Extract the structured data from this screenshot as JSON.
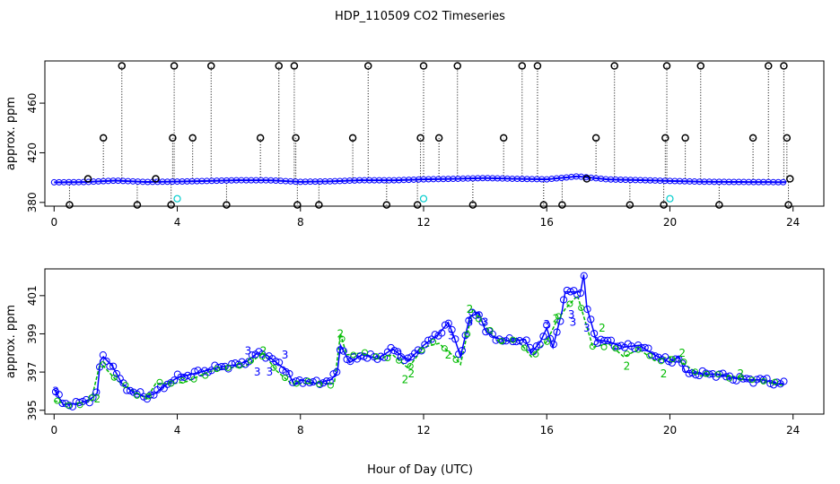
{
  "figure": {
    "title": "HDP_110509  CO2 Timeseries",
    "xlabel": "Hour of Day (UTC)"
  },
  "colors": {
    "primary": "#0000ff",
    "secondary": "#00bb00",
    "outlier": "#000000",
    "flag": "#00cccc"
  },
  "chart_data": [
    {
      "type": "scatter",
      "panel": "top",
      "ylabel": "approx. ppm",
      "xlim": [
        -0.3,
        25
      ],
      "ylim": [
        377,
        494
      ],
      "xticks": [
        0,
        4,
        8,
        12,
        16,
        20,
        24
      ],
      "yticks": [
        380,
        420,
        460
      ],
      "ytick_labels": [
        "380",
        "420",
        "460"
      ],
      "baseline": [
        [
          0,
          396.2
        ],
        [
          1,
          396.4
        ],
        [
          2,
          397.6
        ],
        [
          3,
          396.5
        ],
        [
          4,
          396.8
        ],
        [
          5,
          397.3
        ],
        [
          6,
          397.9
        ],
        [
          7,
          397.8
        ],
        [
          8,
          396.6
        ],
        [
          9,
          397.0
        ],
        [
          10,
          397.9
        ],
        [
          11,
          397.8
        ],
        [
          12,
          398.6
        ],
        [
          13,
          399.0
        ],
        [
          14,
          399.6
        ],
        [
          15,
          399.0
        ],
        [
          16,
          398.6
        ],
        [
          17,
          401.0
        ],
        [
          18,
          398.5
        ],
        [
          19,
          398.0
        ],
        [
          20,
          397.3
        ],
        [
          21,
          396.7
        ],
        [
          22,
          396.5
        ],
        [
          23,
          396.4
        ],
        [
          23.8,
          396.3
        ]
      ],
      "outliers": [
        {
          "x": 0.5,
          "y": 378
        },
        {
          "x": 1.1,
          "y": 399
        },
        {
          "x": 1.6,
          "y": 432
        },
        {
          "x": 2.2,
          "y": 490
        },
        {
          "x": 2.7,
          "y": 378
        },
        {
          "x": 3.3,
          "y": 399
        },
        {
          "x": 3.8,
          "y": 378
        },
        {
          "x": 3.85,
          "y": 432
        },
        {
          "x": 3.9,
          "y": 490
        },
        {
          "x": 4.5,
          "y": 432
        },
        {
          "x": 5.1,
          "y": 490
        },
        {
          "x": 5.6,
          "y": 378
        },
        {
          "x": 6.7,
          "y": 432
        },
        {
          "x": 7.3,
          "y": 490
        },
        {
          "x": 7.8,
          "y": 490
        },
        {
          "x": 7.85,
          "y": 432
        },
        {
          "x": 7.9,
          "y": 378
        },
        {
          "x": 8.6,
          "y": 378
        },
        {
          "x": 9.7,
          "y": 432
        },
        {
          "x": 10.2,
          "y": 490
        },
        {
          "x": 10.8,
          "y": 378
        },
        {
          "x": 11.8,
          "y": 378
        },
        {
          "x": 11.9,
          "y": 432
        },
        {
          "x": 12.0,
          "y": 490
        },
        {
          "x": 12.5,
          "y": 432
        },
        {
          "x": 13.1,
          "y": 490
        },
        {
          "x": 13.6,
          "y": 378
        },
        {
          "x": 14.6,
          "y": 432
        },
        {
          "x": 15.2,
          "y": 490
        },
        {
          "x": 15.7,
          "y": 490
        },
        {
          "x": 15.9,
          "y": 378
        },
        {
          "x": 16.5,
          "y": 378
        },
        {
          "x": 17.3,
          "y": 399
        },
        {
          "x": 17.6,
          "y": 432
        },
        {
          "x": 18.2,
          "y": 490
        },
        {
          "x": 18.7,
          "y": 378
        },
        {
          "x": 19.8,
          "y": 378
        },
        {
          "x": 19.85,
          "y": 432
        },
        {
          "x": 19.9,
          "y": 490
        },
        {
          "x": 20.5,
          "y": 432
        },
        {
          "x": 21.0,
          "y": 490
        },
        {
          "x": 21.6,
          "y": 378
        },
        {
          "x": 22.7,
          "y": 432
        },
        {
          "x": 23.2,
          "y": 490
        },
        {
          "x": 23.7,
          "y": 490
        },
        {
          "x": 23.8,
          "y": 432
        },
        {
          "x": 23.85,
          "y": 378
        },
        {
          "x": 23.9,
          "y": 399
        }
      ],
      "flagged": [
        {
          "x": 4.0,
          "y": 383
        },
        {
          "x": 12.0,
          "y": 383
        },
        {
          "x": 20.0,
          "y": 383
        }
      ]
    },
    {
      "type": "line",
      "panel": "bottom",
      "ylabel": "approx. ppm",
      "xlim": [
        -0.3,
        25
      ],
      "ylim": [
        394.8,
        402.4
      ],
      "xticks": [
        0,
        4,
        8,
        12,
        16,
        20,
        24
      ],
      "yticks": [
        395,
        397,
        399,
        401
      ],
      "ytick_labels": [
        "395",
        "397",
        "399",
        "401"
      ],
      "series_primary": [
        [
          0,
          396.1
        ],
        [
          0.3,
          395.3
        ],
        [
          0.8,
          395.35
        ],
        [
          1.2,
          395.6
        ],
        [
          1.4,
          395.9
        ],
        [
          1.5,
          397.6
        ],
        [
          1.6,
          397.8
        ],
        [
          1.9,
          397.3
        ],
        [
          2.2,
          396.4
        ],
        [
          2.6,
          395.9
        ],
        [
          3.0,
          395.7
        ],
        [
          3.3,
          395.9
        ],
        [
          3.6,
          396.3
        ],
        [
          4.0,
          396.7
        ],
        [
          4.5,
          396.9
        ],
        [
          5.0,
          397.1
        ],
        [
          5.5,
          397.3
        ],
        [
          6.0,
          397.4
        ],
        [
          6.3,
          397.6
        ],
        [
          6.6,
          398.0
        ],
        [
          6.9,
          397.9
        ],
        [
          7.3,
          397.4
        ],
        [
          7.6,
          397.0
        ],
        [
          7.8,
          396.3
        ],
        [
          8.0,
          396.6
        ],
        [
          8.5,
          396.4
        ],
        [
          9.0,
          396.6
        ],
        [
          9.2,
          397.0
        ],
        [
          9.3,
          398.4
        ],
        [
          9.6,
          397.5
        ],
        [
          10.0,
          397.9
        ],
        [
          10.5,
          397.7
        ],
        [
          11.0,
          398.2
        ],
        [
          11.5,
          397.6
        ],
        [
          12.0,
          398.4
        ],
        [
          12.5,
          399.0
        ],
        [
          12.8,
          399.6
        ],
        [
          13.0,
          398.8
        ],
        [
          13.2,
          397.8
        ],
        [
          13.5,
          399.9
        ],
        [
          13.8,
          400.1
        ],
        [
          14.0,
          399.2
        ],
        [
          14.3,
          398.8
        ],
        [
          14.8,
          398.6
        ],
        [
          15.3,
          398.7
        ],
        [
          15.5,
          398.0
        ],
        [
          15.8,
          398.6
        ],
        [
          16.0,
          399.3
        ],
        [
          16.2,
          398.3
        ],
        [
          16.5,
          400.2
        ],
        [
          16.6,
          401.2
        ],
        [
          16.9,
          401.2
        ],
        [
          17.1,
          401.2
        ],
        [
          17.2,
          402.1
        ],
        [
          17.3,
          400.4
        ],
        [
          17.6,
          398.7
        ],
        [
          18.0,
          398.6
        ],
        [
          18.5,
          398.3
        ],
        [
          19.0,
          398.4
        ],
        [
          19.5,
          397.9
        ],
        [
          20.0,
          397.5
        ],
        [
          20.3,
          397.8
        ],
        [
          20.5,
          397.0
        ],
        [
          21.0,
          396.9
        ],
        [
          21.5,
          396.9
        ],
        [
          22.0,
          396.7
        ],
        [
          22.5,
          396.6
        ],
        [
          23.0,
          396.6
        ],
        [
          23.5,
          396.4
        ],
        [
          23.7,
          396.4
        ]
      ],
      "series_secondary": [
        [
          0,
          395.5
        ],
        [
          0.5,
          395.3
        ],
        [
          1.2,
          395.5
        ],
        [
          1.5,
          397.5
        ],
        [
          2.0,
          396.6
        ],
        [
          3.0,
          395.6
        ],
        [
          3.3,
          396.4
        ],
        [
          3.9,
          396.4
        ],
        [
          4.3,
          396.5
        ],
        [
          5.0,
          397.0
        ],
        [
          5.5,
          397.2
        ],
        [
          6.2,
          397.3
        ],
        [
          6.8,
          398.0
        ],
        [
          7.2,
          397.1
        ],
        [
          7.7,
          396.4
        ],
        [
          8.5,
          396.4
        ],
        [
          9.1,
          396.4
        ],
        [
          9.3,
          399.0
        ],
        [
          9.5,
          397.9
        ],
        [
          10.0,
          398.0
        ],
        [
          10.5,
          397.7
        ],
        [
          11.0,
          397.9
        ],
        [
          11.5,
          397.2
        ],
        [
          12.0,
          398.3
        ],
        [
          12.5,
          398.5
        ],
        [
          13.0,
          397.8
        ],
        [
          13.2,
          397.4
        ],
        [
          13.6,
          400.3
        ],
        [
          14.0,
          399.4
        ],
        [
          14.5,
          398.5
        ],
        [
          15.0,
          398.8
        ],
        [
          15.5,
          397.8
        ],
        [
          16.0,
          398.6
        ],
        [
          16.3,
          399.6
        ],
        [
          16.6,
          400.3
        ],
        [
          17.0,
          401.0
        ],
        [
          17.5,
          398.3
        ],
        [
          18.0,
          398.5
        ],
        [
          18.5,
          397.8
        ],
        [
          19.0,
          398.2
        ],
        [
          19.5,
          397.6
        ],
        [
          20.0,
          397.8
        ],
        [
          20.4,
          397.5
        ],
        [
          21.0,
          396.8
        ],
        [
          21.5,
          396.9
        ],
        [
          22.0,
          396.8
        ],
        [
          22.5,
          396.6
        ],
        [
          23.0,
          396.5
        ],
        [
          23.7,
          396.3
        ]
      ],
      "labels": [
        {
          "text": "3",
          "x": 0.05,
          "y": 396.0,
          "color": "#0000ff"
        },
        {
          "text": "2",
          "x": 1.4,
          "y": 395.6,
          "color": "#00bb00"
        },
        {
          "text": "3",
          "x": 6.3,
          "y": 398.1,
          "color": "#0000ff"
        },
        {
          "text": "3",
          "x": 6.6,
          "y": 397.0,
          "color": "#0000ff"
        },
        {
          "text": "3",
          "x": 7.0,
          "y": 397.0,
          "color": "#0000ff"
        },
        {
          "text": "2",
          "x": 6.8,
          "y": 398.1,
          "color": "#00bb00"
        },
        {
          "text": "3",
          "x": 7.5,
          "y": 397.9,
          "color": "#0000ff"
        },
        {
          "text": "2",
          "x": 9.3,
          "y": 399.0,
          "color": "#00bb00"
        },
        {
          "text": "2",
          "x": 11.4,
          "y": 396.6,
          "color": "#00bb00"
        },
        {
          "text": "2",
          "x": 11.6,
          "y": 396.9,
          "color": "#00bb00"
        },
        {
          "text": "3",
          "x": 11.2,
          "y": 397.9,
          "color": "#0000ff"
        },
        {
          "text": "3",
          "x": 12.9,
          "y": 398.9,
          "color": "#0000ff"
        },
        {
          "text": "2",
          "x": 12.8,
          "y": 397.9,
          "color": "#00bb00"
        },
        {
          "text": "2",
          "x": 13.5,
          "y": 400.3,
          "color": "#00bb00"
        },
        {
          "text": "3",
          "x": 13.5,
          "y": 399.6,
          "color": "#0000ff"
        },
        {
          "text": "3",
          "x": 14.0,
          "y": 399.6,
          "color": "#0000ff"
        },
        {
          "text": "3",
          "x": 16.0,
          "y": 399.5,
          "color": "#0000ff"
        },
        {
          "text": "2",
          "x": 16.3,
          "y": 399.8,
          "color": "#00bb00"
        },
        {
          "text": "3",
          "x": 16.8,
          "y": 400.0,
          "color": "#0000ff"
        },
        {
          "text": "3",
          "x": 16.85,
          "y": 399.6,
          "color": "#0000ff"
        },
        {
          "text": "3",
          "x": 17.3,
          "y": 399.3,
          "color": "#0000ff"
        },
        {
          "text": "3",
          "x": 17.6,
          "y": 398.6,
          "color": "#0000ff"
        },
        {
          "text": "2",
          "x": 17.8,
          "y": 399.3,
          "color": "#00bb00"
        },
        {
          "text": "2",
          "x": 18.6,
          "y": 397.3,
          "color": "#00bb00"
        },
        {
          "text": "2",
          "x": 19.8,
          "y": 396.9,
          "color": "#00bb00"
        },
        {
          "text": "2",
          "x": 20.4,
          "y": 398.0,
          "color": "#00bb00"
        },
        {
          "text": "2",
          "x": 22.3,
          "y": 396.9,
          "color": "#00bb00"
        }
      ]
    }
  ]
}
